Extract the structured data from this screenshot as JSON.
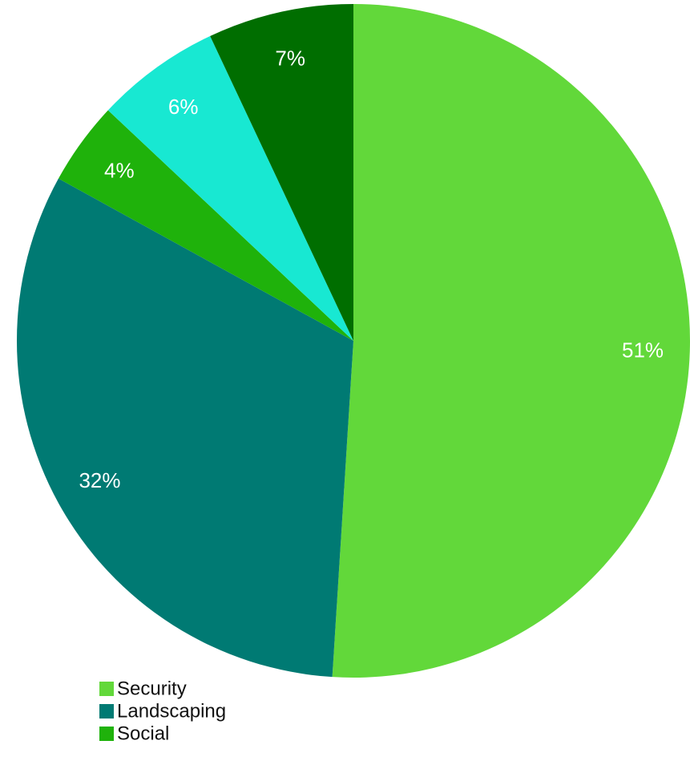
{
  "chart_data": {
    "type": "pie",
    "title": "",
    "start_angle_deg": 0,
    "direction": "clockwise",
    "slices": [
      {
        "label": "Security",
        "value": 51,
        "display": "51%",
        "color": "#62d83a"
      },
      {
        "label": "Landscaping",
        "value": 32,
        "display": "32%",
        "color": "#007a73"
      },
      {
        "label": "Social",
        "value": 4,
        "display": "4%",
        "color": "#1fb20b"
      },
      {
        "label": "",
        "value": 6,
        "display": "6%",
        "color": "#18e8d2"
      },
      {
        "label": "",
        "value": 7,
        "display": "7%",
        "color": "#006e00"
      }
    ],
    "legend": {
      "placement": "bottom-left",
      "entries": [
        "Security",
        "Landscaping",
        "Social"
      ]
    }
  }
}
